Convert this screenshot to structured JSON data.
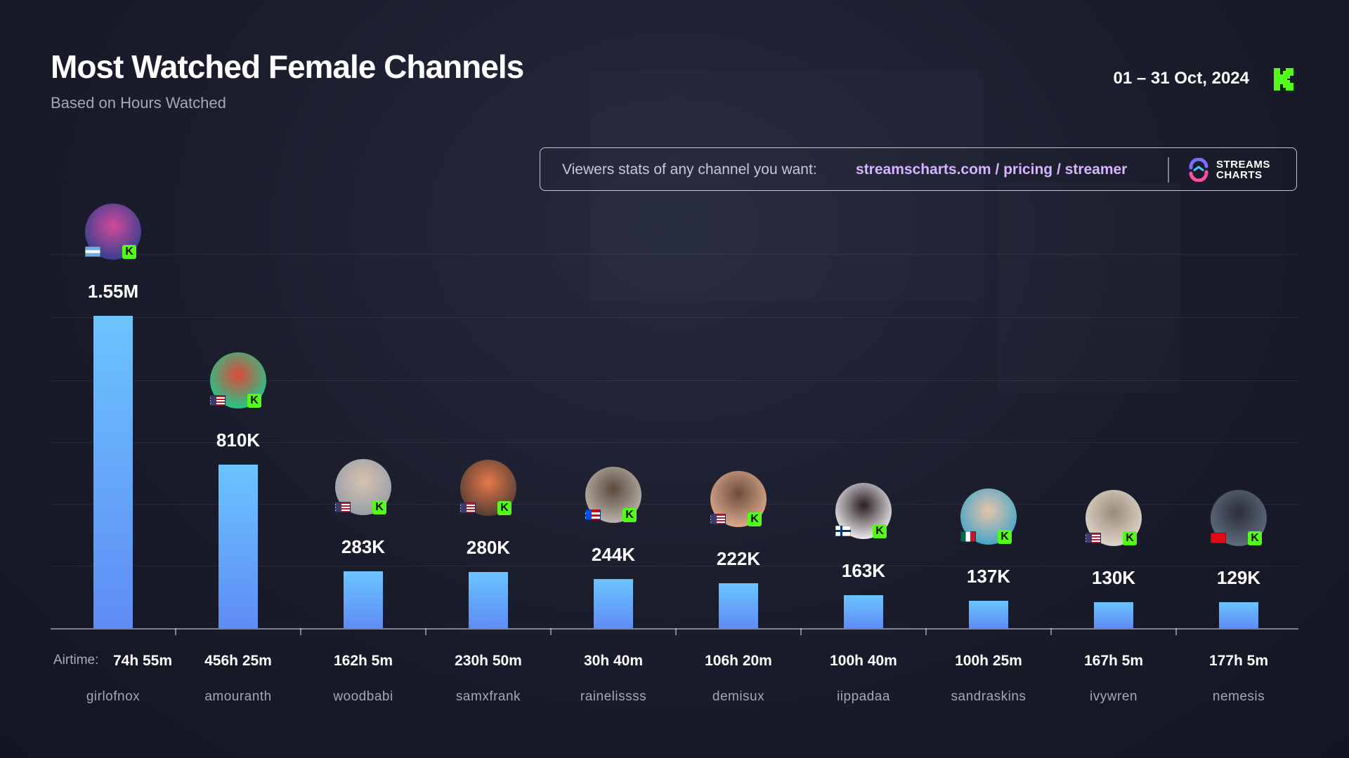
{
  "header": {
    "title": "Most Watched Female Channels",
    "subtitle": "Based on Hours Watched",
    "date_range": "01 – 31 Oct, 2024"
  },
  "promo": {
    "text": "Viewers stats of any channel you want:",
    "link": "streamscharts.com / pricing / streamer",
    "brand_line1": "STREAMS",
    "brand_line2": "CHARTS"
  },
  "colors": {
    "bar_top": "#6bc4ff",
    "bar_bottom": "#5f8cf5",
    "kick_green": "#53fc18",
    "link_purple": "#d6b4ff",
    "background": "#1a1c2b"
  },
  "airtime_label": "Airtime:",
  "chart_data": {
    "type": "bar",
    "title": "Most Watched Female Channels",
    "subtitle": "Based on Hours Watched",
    "categories": [
      "girlofnox",
      "amouranth",
      "woodbabi",
      "samxfrank",
      "rainelissss",
      "demisux",
      "iippadaa",
      "sandraskins",
      "ivywren",
      "nemesis"
    ],
    "values": [
      1550000,
      810000,
      283000,
      280000,
      244000,
      222000,
      163000,
      137000,
      130000,
      129000
    ],
    "value_labels": [
      "1.55M",
      "810K",
      "283K",
      "280K",
      "244K",
      "222K",
      "163K",
      "137K",
      "130K",
      "129K"
    ],
    "airtime": [
      "74h 55m",
      "456h 25m",
      "162h 5m",
      "230h 50m",
      "30h 40m",
      "106h 20m",
      "100h 40m",
      "100h 25m",
      "167h 5m",
      "177h 5m"
    ],
    "flags": [
      "argentina",
      "usa",
      "usa",
      "usa",
      "puerto-rico",
      "usa",
      "finland",
      "mexico",
      "usa",
      "turkey"
    ],
    "ylim": [
      0,
      1550000
    ],
    "grid": true
  }
}
